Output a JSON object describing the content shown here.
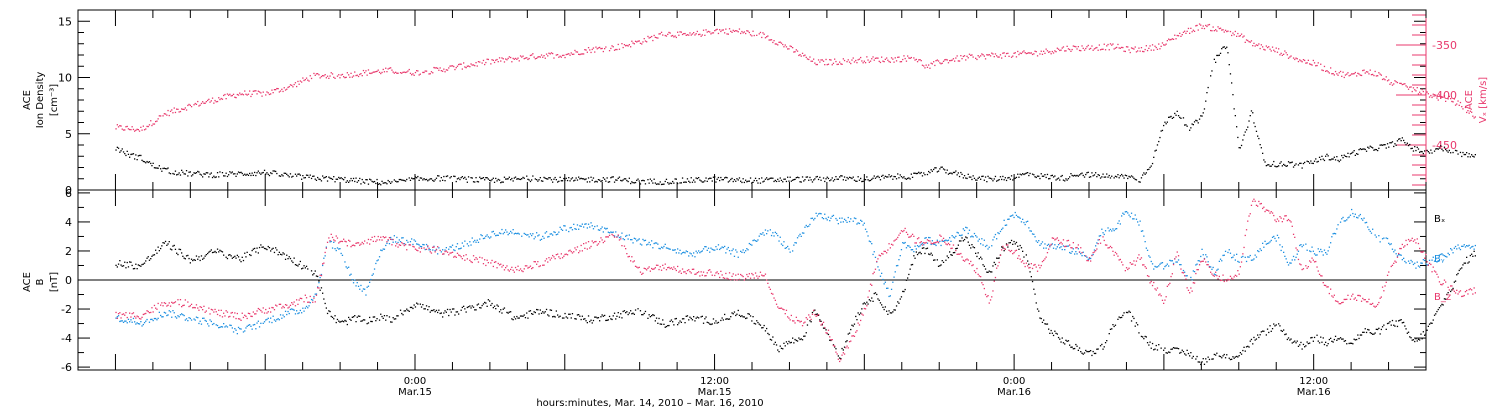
{
  "chart_data": [
    {
      "type": "scatter",
      "panel": "top",
      "ylabel_left": [
        "ACE",
        "Ion Density",
        "[cm⁻³]"
      ],
      "ylabel_right": [
        "ACE",
        "Vₓ [km/s]"
      ],
      "left_axis": {
        "ylim": [
          0,
          16
        ],
        "ticks": [
          0,
          5,
          10,
          15
        ]
      },
      "right_axis": {
        "ylim": [
          -495,
          -315
        ],
        "ticks": [
          -350,
          -400,
          -450
        ]
      },
      "series": [
        {
          "color": "#000000",
          "axis": "left",
          "x": [
            0,
            1,
            2,
            3,
            4,
            5,
            6,
            8,
            10,
            12,
            14,
            15,
            16,
            18,
            20,
            22,
            24,
            26,
            28,
            30,
            32,
            34,
            36,
            38,
            40,
            42,
            44,
            46,
            48,
            50,
            52,
            54,
            56,
            58,
            60,
            62,
            64,
            66,
            68,
            70,
            71,
            72,
            73,
            74,
            75,
            76,
            77,
            78,
            79,
            80,
            81,
            82,
            83,
            84,
            85,
            86,
            87,
            88,
            89,
            90,
            91,
            92,
            93,
            94,
            95,
            96,
            97,
            98,
            99,
            100,
            101,
            102,
            103,
            104,
            105,
            106,
            107,
            108,
            109
          ],
          "y": [
            3.8,
            3.2,
            2.9,
            2.2,
            1.8,
            1.6,
            1.5,
            1.4,
            1.5,
            1.6,
            1.3,
            1.2,
            1.1,
            1.0,
            0.8,
            0.7,
            1.0,
            1.1,
            1.0,
            0.9,
            1.0,
            1.1,
            0.9,
            1.0,
            1.0,
            0.8,
            0.8,
            0.9,
            1.0,
            0.9,
            0.9,
            1.0,
            1.0,
            1.1,
            1.0,
            1.2,
            1.3,
            1.9,
            1.3,
            1.0,
            1.1,
            1.2,
            1.5,
            1.3,
            1.2,
            1.1,
            1.5,
            1.4,
            1.3,
            1.2,
            1.3,
            0.9,
            2.5,
            6.0,
            7.0,
            5.5,
            6.5,
            11.5,
            13.0,
            3.5,
            7.0,
            2.5,
            2.3,
            2.4,
            2.2,
            2.6,
            3.0,
            2.8,
            3.3,
            3.6,
            3.8,
            4.0,
            4.5,
            3.7,
            3.4,
            3.8,
            3.5,
            3.2,
            3.0
          ]
        },
        {
          "color": "#e8386c",
          "axis": "right",
          "x": [
            0,
            2,
            4,
            6,
            8,
            10,
            12,
            14,
            15,
            16,
            18,
            20,
            22,
            24,
            26,
            28,
            30,
            32,
            34,
            36,
            38,
            40,
            42,
            44,
            46,
            48,
            50,
            52,
            54,
            56,
            58,
            60,
            62,
            64,
            65,
            66,
            68,
            70,
            72,
            74,
            76,
            78,
            80,
            81,
            82,
            83,
            84,
            85,
            86,
            87,
            88,
            89,
            90,
            91,
            92,
            93,
            94,
            95,
            96,
            97,
            98,
            99,
            100,
            101,
            102,
            103,
            104,
            105,
            106,
            107,
            108,
            109
          ],
          "y": [
            -432,
            -434,
            -418,
            -410,
            -404,
            -398,
            -398,
            -391,
            -385,
            -380,
            -380,
            -377,
            -375,
            -377,
            -374,
            -370,
            -366,
            -363,
            -360,
            -359,
            -354,
            -352,
            -346,
            -338,
            -340,
            -335,
            -336,
            -340,
            -353,
            -367,
            -366,
            -364,
            -364,
            -362,
            -372,
            -366,
            -362,
            -360,
            -359,
            -357,
            -353,
            -352,
            -351,
            -354,
            -354,
            -352,
            -349,
            -340,
            -335,
            -330,
            -333,
            -335,
            -340,
            -348,
            -352,
            -355,
            -360,
            -365,
            -368,
            -374,
            -378,
            -380,
            -376,
            -378,
            -386,
            -390,
            -394,
            -398,
            -402,
            -404,
            -412,
            -423
          ]
        }
      ]
    },
    {
      "type": "scatter",
      "panel": "bottom",
      "ylabel_left": [
        "ACE",
        "B",
        "[nT]"
      ],
      "ylim": [
        -6.2,
        6.2
      ],
      "yticks": [
        -6,
        -4,
        -2,
        0,
        2,
        4,
        6
      ],
      "series": [
        {
          "name": "Bₓ",
          "color": "#000000",
          "x": [
            0,
            2,
            4,
            6,
            8,
            10,
            12,
            14,
            15,
            16,
            17,
            18,
            19,
            20,
            21,
            22,
            24,
            26,
            28,
            30,
            32,
            34,
            36,
            38,
            40,
            42,
            44,
            46,
            48,
            50,
            52,
            53,
            54,
            55,
            56,
            57,
            58,
            59,
            60,
            61,
            62,
            63,
            64,
            65,
            66,
            67,
            68,
            69,
            70,
            71,
            72,
            73,
            74,
            75,
            76,
            77,
            78,
            79,
            80,
            81,
            82,
            83,
            84,
            85,
            86,
            87,
            88,
            89,
            90,
            91,
            92,
            93,
            94,
            95,
            96,
            97,
            98,
            99,
            100,
            101,
            102,
            103,
            104,
            105,
            106,
            107,
            108,
            109
          ],
          "y": [
            1.2,
            1.0,
            2.6,
            1.4,
            2.0,
            1.5,
            2.4,
            1.5,
            1.0,
            0.5,
            -2.2,
            -3.0,
            -2.6,
            -2.8,
            -2.5,
            -2.7,
            -1.6,
            -2.3,
            -2.0,
            -1.5,
            -2.6,
            -2.1,
            -2.4,
            -2.7,
            -2.4,
            -2.1,
            -3.0,
            -2.6,
            -2.8,
            -2.2,
            -3.2,
            -4.7,
            -4.2,
            -4.0,
            -2.0,
            -3.6,
            -5.3,
            -3.0,
            -1.5,
            -1.0,
            -2.4,
            -1.0,
            1.7,
            2.2,
            1.0,
            2.0,
            3.0,
            1.8,
            0.4,
            2.2,
            2.7,
            1.5,
            -2.5,
            -3.6,
            -4.2,
            -4.7,
            -5.0,
            -4.6,
            -3.0,
            -2.0,
            -3.5,
            -4.5,
            -4.7,
            -4.9,
            -5.0,
            -5.6,
            -5.2,
            -5.3,
            -5.1,
            -4.2,
            -3.6,
            -3.0,
            -4.0,
            -4.5,
            -3.9,
            -4.3,
            -3.8,
            -4.3,
            -3.5,
            -3.6,
            -3.0,
            -2.9,
            -4.3,
            -3.5,
            -2.0,
            -0.5,
            1.2,
            2.0
          ]
        },
        {
          "name": "Bᵧ",
          "color": "#1a8ee0",
          "x": [
            0,
            2,
            4,
            6,
            8,
            10,
            12,
            14,
            15,
            16,
            17,
            18,
            19,
            20,
            21,
            22,
            24,
            26,
            28,
            30,
            32,
            34,
            36,
            38,
            40,
            42,
            44,
            46,
            48,
            50,
            52,
            53,
            54,
            55,
            56,
            57,
            58,
            59,
            60,
            61,
            62,
            63,
            64,
            65,
            66,
            67,
            68,
            69,
            70,
            71,
            72,
            73,
            74,
            75,
            76,
            77,
            78,
            79,
            80,
            81,
            82,
            83,
            84,
            85,
            86,
            87,
            88,
            89,
            90,
            91,
            92,
            93,
            94,
            95,
            96,
            97,
            98,
            99,
            100,
            101,
            102,
            103,
            104,
            105,
            106,
            107,
            108,
            109
          ],
          "y": [
            -2.6,
            -2.9,
            -2.2,
            -2.6,
            -3.0,
            -3.5,
            -2.8,
            -2.2,
            -2.0,
            -1.0,
            2.7,
            2.0,
            0.0,
            -0.8,
            1.6,
            2.9,
            2.6,
            2.0,
            2.5,
            3.2,
            3.4,
            3.0,
            3.6,
            3.8,
            3.2,
            2.7,
            2.3,
            1.8,
            2.3,
            1.8,
            3.4,
            3.1,
            2.0,
            3.2,
            4.5,
            4.4,
            4.1,
            4.2,
            3.9,
            1.0,
            -1.0,
            2.5,
            2.2,
            2.8,
            2.6,
            3.0,
            3.5,
            3.0,
            2.2,
            3.8,
            4.6,
            4.0,
            2.5,
            2.4,
            2.2,
            2.0,
            1.5,
            3.4,
            3.6,
            4.8,
            4.0,
            1.0,
            1.0,
            1.5,
            -0.2,
            2.0,
            0.5,
            2.0,
            1.5,
            1.5,
            2.5,
            3.0,
            1.0,
            2.5,
            2.0,
            2.0,
            4.0,
            4.7,
            4.2,
            3.0,
            2.6,
            1.6,
            1.0,
            1.3,
            1.5,
            2.0,
            2.5,
            2.2
          ]
        },
        {
          "name": "B_z",
          "color": "#e8386c",
          "x": [
            0,
            2,
            4,
            6,
            8,
            10,
            12,
            14,
            15,
            16,
            17,
            18,
            19,
            20,
            21,
            22,
            24,
            26,
            28,
            30,
            32,
            34,
            36,
            38,
            40,
            42,
            44,
            46,
            48,
            50,
            52,
            53,
            54,
            55,
            56,
            57,
            58,
            59,
            60,
            61,
            62,
            63,
            64,
            65,
            66,
            67,
            68,
            69,
            70,
            71,
            72,
            73,
            74,
            75,
            76,
            77,
            78,
            79,
            80,
            81,
            82,
            83,
            84,
            85,
            86,
            87,
            88,
            89,
            90,
            91,
            92,
            93,
            94,
            95,
            96,
            97,
            98,
            99,
            100,
            101,
            102,
            103,
            104,
            105,
            106,
            107,
            108,
            109
          ],
          "y": [
            -2.4,
            -2.4,
            -1.5,
            -1.6,
            -2.2,
            -2.5,
            -2.0,
            -1.7,
            -1.2,
            -1.4,
            3.0,
            2.8,
            2.4,
            2.6,
            3.0,
            2.7,
            2.2,
            2.1,
            1.6,
            1.2,
            0.7,
            1.2,
            1.8,
            2.5,
            3.2,
            0.6,
            1.0,
            0.6,
            0.5,
            0.2,
            0.5,
            -1.8,
            -2.5,
            -3.0,
            -2.2,
            -3.5,
            -5.5,
            -4.0,
            -2.0,
            1.5,
            2.4,
            3.6,
            2.8,
            2.6,
            2.9,
            2.4,
            1.5,
            0.7,
            -1.5,
            2.5,
            2.0,
            1.0,
            0.8,
            2.8,
            2.6,
            2.4,
            1.4,
            3.0,
            1.8,
            0.8,
            1.6,
            -0.2,
            -1.4,
            2.0,
            -1.0,
            1.5,
            0.5,
            0.0,
            0.6,
            5.5,
            5.0,
            4.2,
            4.4,
            0.6,
            1.5,
            -0.5,
            -1.5,
            -1.0,
            -1.3,
            -1.7,
            0.5,
            2.3,
            3.0,
            1.5,
            0.0,
            -0.5,
            -1.0,
            -0.6
          ]
        }
      ],
      "legend": {
        "placement": "right"
      }
    }
  ],
  "x_axis": {
    "major_ticks": [
      {
        "time": "0:00",
        "date": "Mar.15",
        "x": 24
      },
      {
        "time": "12:00",
        "date": "Mar.15",
        "x": 48
      },
      {
        "time": "0:00",
        "date": "Mar.16",
        "x": 72
      },
      {
        "time": "12:00",
        "date": "Mar.16",
        "x": 96
      }
    ],
    "xlim": [
      -3,
      105
    ],
    "data_end_x": 109,
    "label": "hours:minutes, Mar. 14, 2010 – Mar. 16, 2010"
  }
}
